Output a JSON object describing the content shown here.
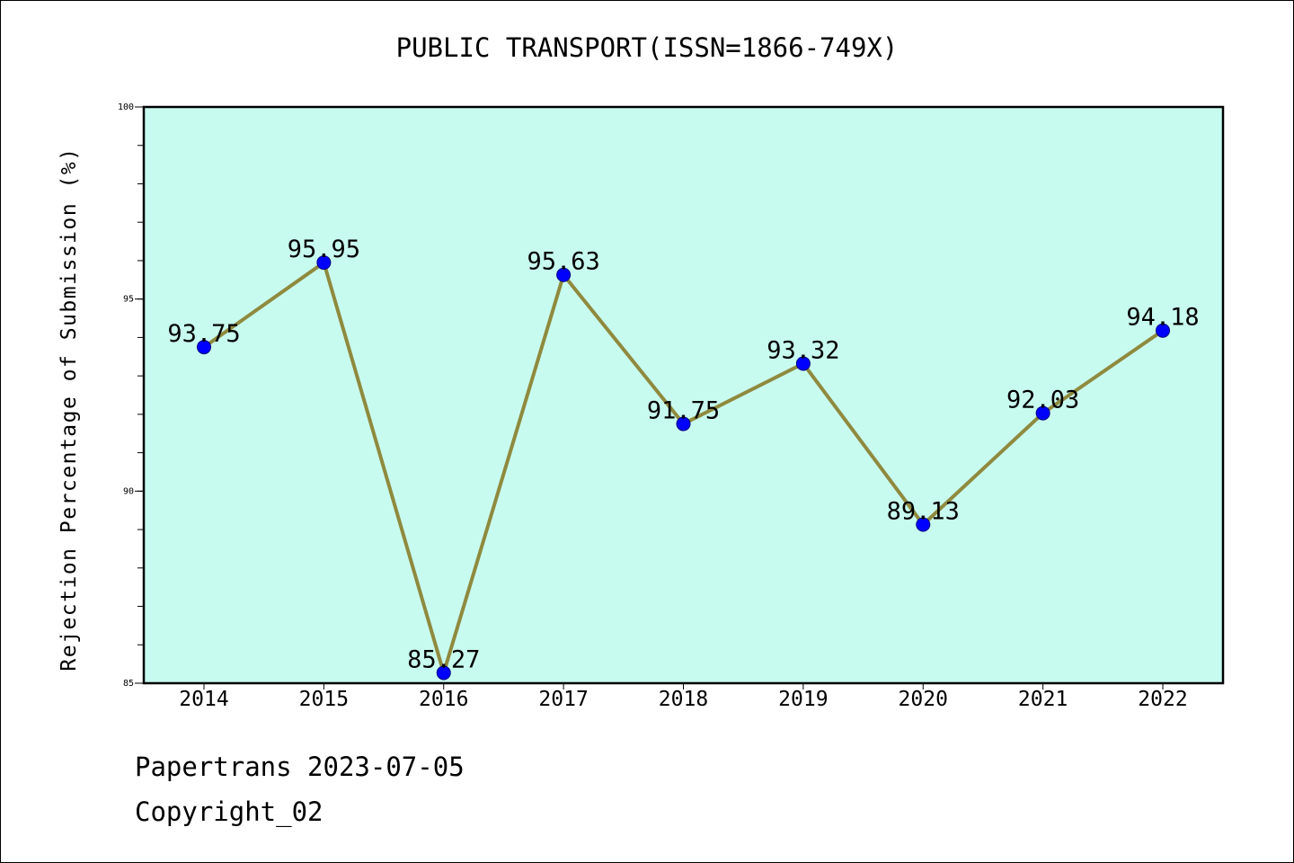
{
  "chart_data": {
    "type": "line",
    "title": "PUBLIC TRANSPORT(ISSN=1866-749X)",
    "xlabel": "",
    "ylabel": "Rejection Percentage of Submission (%)",
    "categories": [
      "2014",
      "2015",
      "2016",
      "2017",
      "2018",
      "2019",
      "2020",
      "2021",
      "2022"
    ],
    "series": [
      {
        "values": [
          93.75,
          95.95,
          85.27,
          95.63,
          91.75,
          93.32,
          89.13,
          92.03,
          94.18
        ],
        "value_labels": [
          "93.75",
          "95.95",
          "85.27",
          "95.63",
          "91.75",
          "93.32",
          "89.13",
          "92.03",
          "94.18"
        ],
        "line_color": "#8f8a3e",
        "marker_color": "#0000ff"
      }
    ],
    "ylim": [
      85,
      100
    ],
    "y_ticks": [
      "85",
      "90",
      "95",
      "100"
    ],
    "y_minor_step": 1,
    "plot_background": "#c8fbef",
    "grid": false,
    "legend": false
  },
  "footer": {
    "line1": "Papertrans 2023-07-05",
    "line2": "Copyright_02"
  }
}
